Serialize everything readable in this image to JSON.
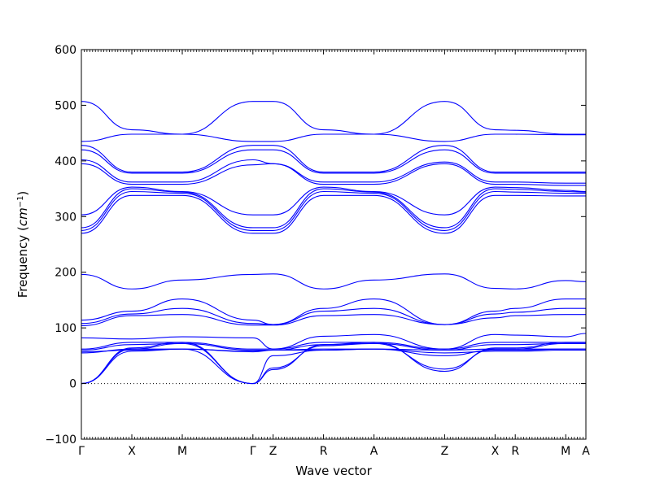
{
  "chart_data": {
    "type": "line",
    "xlabel": "Wave vector",
    "ylabel": "Frequency (cm⁻¹)",
    "ylabel_prefix": "Frequency (",
    "ylabel_unit": "cm",
    "ylabel_exp": "−1",
    "ylabel_suffix": ")",
    "ylim": [
      -100,
      600
    ],
    "y_ticks": [
      -100,
      0,
      100,
      200,
      300,
      400,
      500,
      600
    ],
    "y_tick_labels": [
      "−100",
      "0",
      "100",
      "200",
      "300",
      "400",
      "500",
      "600"
    ],
    "x_range": [
      0,
      10
    ],
    "high_symmetry_points": [
      {
        "label": "Γ",
        "x": 0
      },
      {
        "label": "X",
        "x": 1
      },
      {
        "label": "M",
        "x": 2
      },
      {
        "label": "Γ",
        "x": 3.4
      },
      {
        "label": "Z",
        "x": 3.8
      },
      {
        "label": "R",
        "x": 4.8
      },
      {
        "label": "A",
        "x": 5.8
      },
      {
        "label": "Z",
        "x": 7.2
      },
      {
        "label": "X",
        "x": 8.2
      },
      {
        "label": "R",
        "x": 8.6
      },
      {
        "label": "M",
        "x": 9.6
      },
      {
        "label": "A",
        "x": 10
      }
    ],
    "zero_line": true,
    "grid": false,
    "series_color": "#0000ff",
    "series": [
      {
        "x": [
          0,
          1,
          2,
          3.4,
          3.8,
          4.8,
          5.8,
          7.2,
          8.2,
          8.6,
          9.6,
          10
        ],
        "y": [
          507,
          456,
          448,
          507,
          507,
          456,
          448,
          507,
          456,
          455,
          448,
          448
        ]
      },
      {
        "x": [
          0,
          1,
          2,
          3.4,
          3.8,
          4.8,
          5.8,
          7.2,
          8.2,
          8.6,
          9.6,
          10
        ],
        "y": [
          435,
          448,
          448,
          435,
          435,
          448,
          448,
          435,
          448,
          448,
          447,
          447
        ]
      },
      {
        "x": [
          0,
          1,
          2,
          3.4,
          3.8,
          4.8,
          5.8,
          7.2,
          8.2,
          8.6,
          9.6,
          10
        ],
        "y": [
          428,
          380,
          380,
          428,
          428,
          380,
          380,
          428,
          380,
          380,
          380,
          380
        ]
      },
      {
        "x": [
          0,
          1,
          2,
          3.4,
          3.8,
          4.8,
          5.8,
          7.2,
          8.2,
          8.6,
          9.6,
          10
        ],
        "y": [
          420,
          378,
          378,
          420,
          420,
          378,
          378,
          420,
          378,
          378,
          378,
          378
        ]
      },
      {
        "x": [
          0,
          1,
          2,
          3.4,
          3.8,
          4.8,
          5.8,
          7.2,
          8.2,
          8.6,
          9.6,
          10
        ],
        "y": [
          402,
          362,
          362,
          402,
          395,
          362,
          362,
          398,
          362,
          362,
          360,
          360
        ]
      },
      {
        "x": [
          0,
          1,
          2,
          3.4,
          3.8,
          4.8,
          5.8,
          7.2,
          8.2,
          8.6,
          9.6,
          10
        ],
        "y": [
          395,
          358,
          358,
          393,
          395,
          358,
          358,
          395,
          358,
          358,
          356,
          356
        ]
      },
      {
        "x": [
          0,
          1,
          2,
          3.4,
          3.8,
          4.8,
          5.8,
          7.2,
          8.2,
          8.6,
          9.6,
          10
        ],
        "y": [
          303,
          353,
          345,
          303,
          303,
          353,
          345,
          303,
          353,
          352,
          347,
          345
        ]
      },
      {
        "x": [
          0,
          1,
          2,
          3.4,
          3.8,
          4.8,
          5.8,
          7.2,
          8.2,
          8.6,
          9.6,
          10
        ],
        "y": [
          280,
          350,
          344,
          280,
          280,
          350,
          344,
          280,
          350,
          349,
          345,
          344
        ]
      },
      {
        "x": [
          0,
          1,
          2,
          3.4,
          3.8,
          4.8,
          5.8,
          7.2,
          8.2,
          8.6,
          9.6,
          10
        ],
        "y": [
          275,
          345,
          342,
          275,
          275,
          345,
          342,
          275,
          345,
          344,
          342,
          342
        ]
      },
      {
        "x": [
          0,
          1,
          2,
          3.4,
          3.8,
          4.8,
          5.8,
          7.2,
          8.2,
          8.6,
          9.6,
          10
        ],
        "y": [
          270,
          338,
          338,
          270,
          270,
          338,
          338,
          270,
          338,
          338,
          337,
          337
        ]
      },
      {
        "x": [
          0,
          1,
          2,
          3.4,
          3.8,
          4.8,
          5.8,
          7.2,
          8.2,
          8.6,
          9.6,
          10
        ],
        "y": [
          196,
          170,
          186,
          196,
          197,
          170,
          186,
          197,
          171,
          170,
          185,
          183
        ]
      },
      {
        "x": [
          0,
          1,
          2,
          3.4,
          3.8,
          4.8,
          5.8,
          7.2,
          8.2,
          8.6,
          9.6,
          10
        ],
        "y": [
          114,
          130,
          152,
          114,
          106,
          135,
          152,
          106,
          130,
          135,
          152,
          152
        ]
      },
      {
        "x": [
          0,
          1,
          2,
          3.4,
          3.8,
          4.8,
          5.8,
          7.2,
          8.2,
          8.6,
          9.6,
          10
        ],
        "y": [
          108,
          125,
          135,
          108,
          106,
          130,
          135,
          106,
          125,
          128,
          135,
          135
        ]
      },
      {
        "x": [
          0,
          1,
          2,
          3.4,
          3.8,
          4.8,
          5.8,
          7.2,
          8.2,
          8.6,
          9.6,
          10
        ],
        "y": [
          104,
          122,
          124,
          105,
          105,
          122,
          124,
          106,
          118,
          122,
          124,
          124
        ]
      },
      {
        "x": [
          0,
          1,
          2,
          3.4,
          3.8,
          4.8,
          5.8,
          7.2,
          8.2,
          8.6,
          9.6,
          10
        ],
        "y": [
          82,
          80,
          84,
          82,
          62,
          85,
          88,
          62,
          88,
          87,
          84,
          90
        ]
      },
      {
        "x": [
          0,
          1,
          2,
          3.4,
          3.8,
          4.8,
          5.8,
          7.2,
          8.2,
          8.6,
          9.6,
          10
        ],
        "y": [
          62,
          74,
          74,
          62,
          62,
          74,
          74,
          62,
          74,
          74,
          74,
          74
        ]
      },
      {
        "x": [
          0,
          1,
          2,
          3.4,
          3.8,
          4.8,
          5.8,
          7.2,
          8.2,
          8.6,
          9.6,
          10
        ],
        "y": [
          60,
          70,
          72,
          60,
          60,
          70,
          72,
          60,
          70,
          70,
          72,
          72
        ]
      },
      {
        "x": [
          0,
          1,
          2,
          3.4,
          3.8,
          4.8,
          5.8,
          7.2,
          8.2,
          8.6,
          9.6,
          10
        ],
        "y": [
          57,
          60,
          62,
          57,
          60,
          60,
          62,
          50,
          60,
          60,
          62,
          62
        ]
      },
      {
        "x": [
          0,
          1,
          2,
          3.4,
          3.8,
          4.8,
          5.8,
          7.2,
          8.2,
          8.6,
          9.6,
          10
        ],
        "y": [
          55,
          62,
          62,
          58,
          60,
          62,
          62,
          60,
          62,
          62,
          62,
          62
        ]
      },
      {
        "x": [
          0,
          1,
          2,
          3.4,
          3.8,
          4.8,
          5.8,
          7.2,
          8.2,
          8.6,
          9.6,
          10
        ],
        "y": [
          0,
          64,
          74,
          0,
          25,
          70,
          74,
          22,
          64,
          64,
          74,
          74
        ]
      },
      {
        "x": [
          0,
          1,
          2,
          3.4,
          3.8,
          4.8,
          5.8,
          7.2,
          8.2,
          8.6,
          9.6,
          10
        ],
        "y": [
          0,
          62,
          72,
          0,
          28,
          68,
          72,
          26,
          62,
          62,
          72,
          72
        ]
      },
      {
        "x": [
          0,
          1,
          2,
          3.4,
          3.8,
          4.8,
          5.8,
          7.2,
          8.2,
          8.6,
          9.6,
          10
        ],
        "y": [
          0,
          58,
          62,
          0,
          50,
          60,
          62,
          55,
          58,
          58,
          60,
          60
        ]
      }
    ]
  }
}
